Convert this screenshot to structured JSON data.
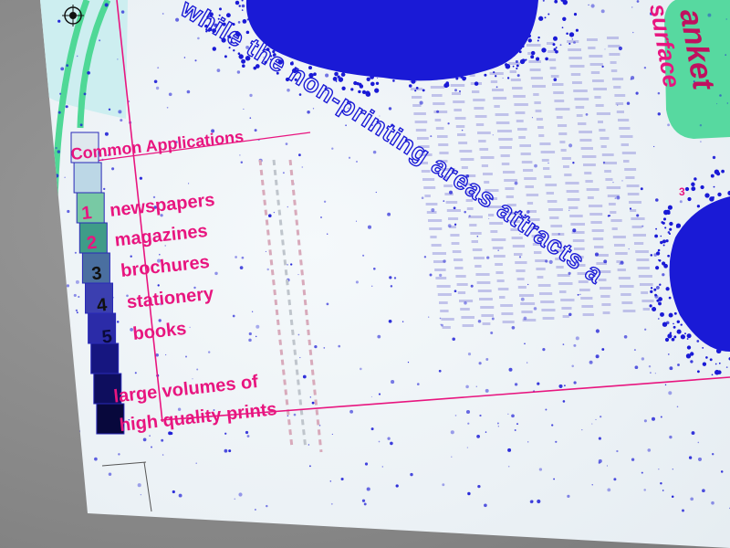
{
  "legend": {
    "title": "Common Applications",
    "items": [
      {
        "number": "1",
        "label": "newspapers"
      },
      {
        "number": "2",
        "label": "magazines"
      },
      {
        "number": "3",
        "label": "brochures"
      },
      {
        "number": "4",
        "label": "stationery"
      },
      {
        "number": "5",
        "label": "books"
      }
    ],
    "note_line1": "large volumes of",
    "note_line2": "high quality prints"
  },
  "curved_text": "while the non-printing areas attracts a",
  "side_fragments": {
    "word_top": "anket",
    "word_surface": "surface",
    "digit_small": "3"
  },
  "colors": {
    "magenta": "#e8157f",
    "ink_blue": "#1a1ad6",
    "mint": "#57d9a0",
    "paper": "#f1f5f8"
  },
  "swatches": [
    "#dfe8ee",
    "#bcd7e6",
    "#78c9a4",
    "#3f9c88",
    "#4a6fa0",
    "#3b3fb0",
    "#2b2ba8",
    "#161680",
    "#0e0e5e",
    "#08083c"
  ]
}
